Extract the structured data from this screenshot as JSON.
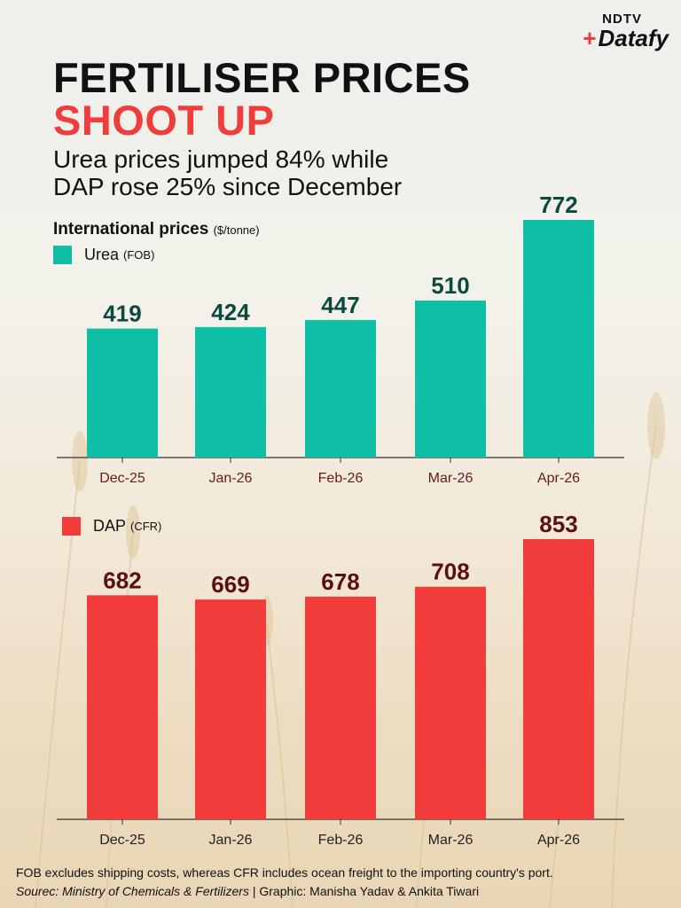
{
  "brand": {
    "line1": "NDTV",
    "line2": "Datafy",
    "accent": "#e63c3c"
  },
  "title": {
    "line1": "FERTILISER PRICES",
    "line2": "SHOOT UP",
    "line2_color": "#f03c3c"
  },
  "subtitle": {
    "line1": "Urea prices jumped 84% while",
    "line2": "DAP rose 25% since December"
  },
  "chart_heading": {
    "label": "International prices",
    "unit": "($/tonne)"
  },
  "colors": {
    "urea": "#0fbfa5",
    "dap": "#f23b3b",
    "urea_label": "#0c4a40",
    "dap_label": "#5a1010",
    "axis": "#333333",
    "tick_text_urea": "#6a1a1a",
    "tick_text_dap": "#222222"
  },
  "chart_data": [
    {
      "type": "bar",
      "series": [
        {
          "name": "Urea",
          "values": [
            419,
            424,
            447,
            510,
            772
          ]
        }
      ],
      "categories": [
        "Dec-25",
        "Jan-26",
        "Feb-26",
        "Mar-26",
        "Apr-26"
      ],
      "legend": {
        "name": "Urea",
        "note": "(FOB)"
      },
      "ylim": [
        0,
        772
      ]
    },
    {
      "type": "bar",
      "series": [
        {
          "name": "DAP",
          "values": [
            682,
            669,
            678,
            708,
            853
          ]
        }
      ],
      "categories": [
        "Dec-25",
        "Jan-26",
        "Feb-26",
        "Mar-26",
        "Apr-26"
      ],
      "legend": {
        "name": "DAP",
        "note": "(CFR)"
      },
      "ylim": [
        0,
        853
      ]
    }
  ],
  "footer": {
    "note": "FOB excludes shipping costs, whereas CFR includes ocean freight to the importing country's port.",
    "source": "Sourec: Ministry of Chemicals & Fertilizers",
    "separator": " | ",
    "credit": "Graphic: Manisha Yadav & Ankita Tiwari"
  }
}
